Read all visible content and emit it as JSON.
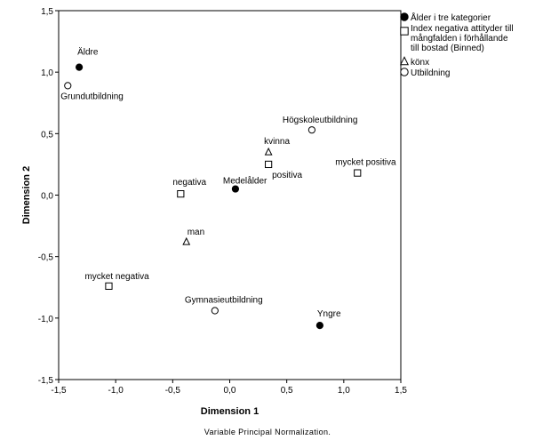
{
  "chart_data": {
    "type": "scatter",
    "xlabel": "Dimension 1",
    "ylabel": "Dimension 2",
    "xlim": [
      -1.5,
      1.5
    ],
    "ylim": [
      -1.5,
      1.5
    ],
    "xticks": [
      "-1,5",
      "-1,0",
      "-0,5",
      "0,0",
      "0,5",
      "1,0",
      "1,5"
    ],
    "yticks": [
      "-1,5",
      "-1,0",
      "-0,5",
      "0,0",
      "0,5",
      "1,0",
      "1,5"
    ],
    "grid": false,
    "legend_position": "right",
    "footnote": "Variable Principal Normalization.",
    "series": [
      {
        "name": "Ålder i tre kategorier",
        "marker": "filled-circle",
        "points": [
          {
            "label": "Äldre",
            "x": -1.32,
            "y": 1.04
          },
          {
            "label": "Medelålder",
            "x": 0.05,
            "y": 0.05
          },
          {
            "label": "Yngre",
            "x": 0.79,
            "y": -1.06
          }
        ]
      },
      {
        "name": "Index negativa attityder till mångfalden i förhållande till bostad (Binned)",
        "legend_lines": [
          "Index negativa attityder till",
          "mångfalden i förhållande",
          "till bostad (Binned)"
        ],
        "marker": "square",
        "points": [
          {
            "label": "negativa",
            "x": -0.43,
            "y": 0.01
          },
          {
            "label": "positiva",
            "x": 0.34,
            "y": 0.25
          },
          {
            "label": "mycket positiva",
            "x": 1.12,
            "y": 0.18
          },
          {
            "label": "mycket negativa",
            "x": -1.06,
            "y": -0.74
          }
        ]
      },
      {
        "name": "könx",
        "marker": "triangle",
        "points": [
          {
            "label": "kvinna",
            "x": 0.34,
            "y": 0.35
          },
          {
            "label": "man",
            "x": -0.38,
            "y": -0.38
          }
        ]
      },
      {
        "name": "Utbildning",
        "marker": "open-circle",
        "points": [
          {
            "label": "Grundutbildning",
            "x": -1.42,
            "y": 0.89
          },
          {
            "label": "Högskoleutbildning",
            "x": 0.72,
            "y": 0.53
          },
          {
            "label": "Gymnasieutbildning",
            "x": -0.13,
            "y": -0.94
          }
        ]
      }
    ]
  }
}
